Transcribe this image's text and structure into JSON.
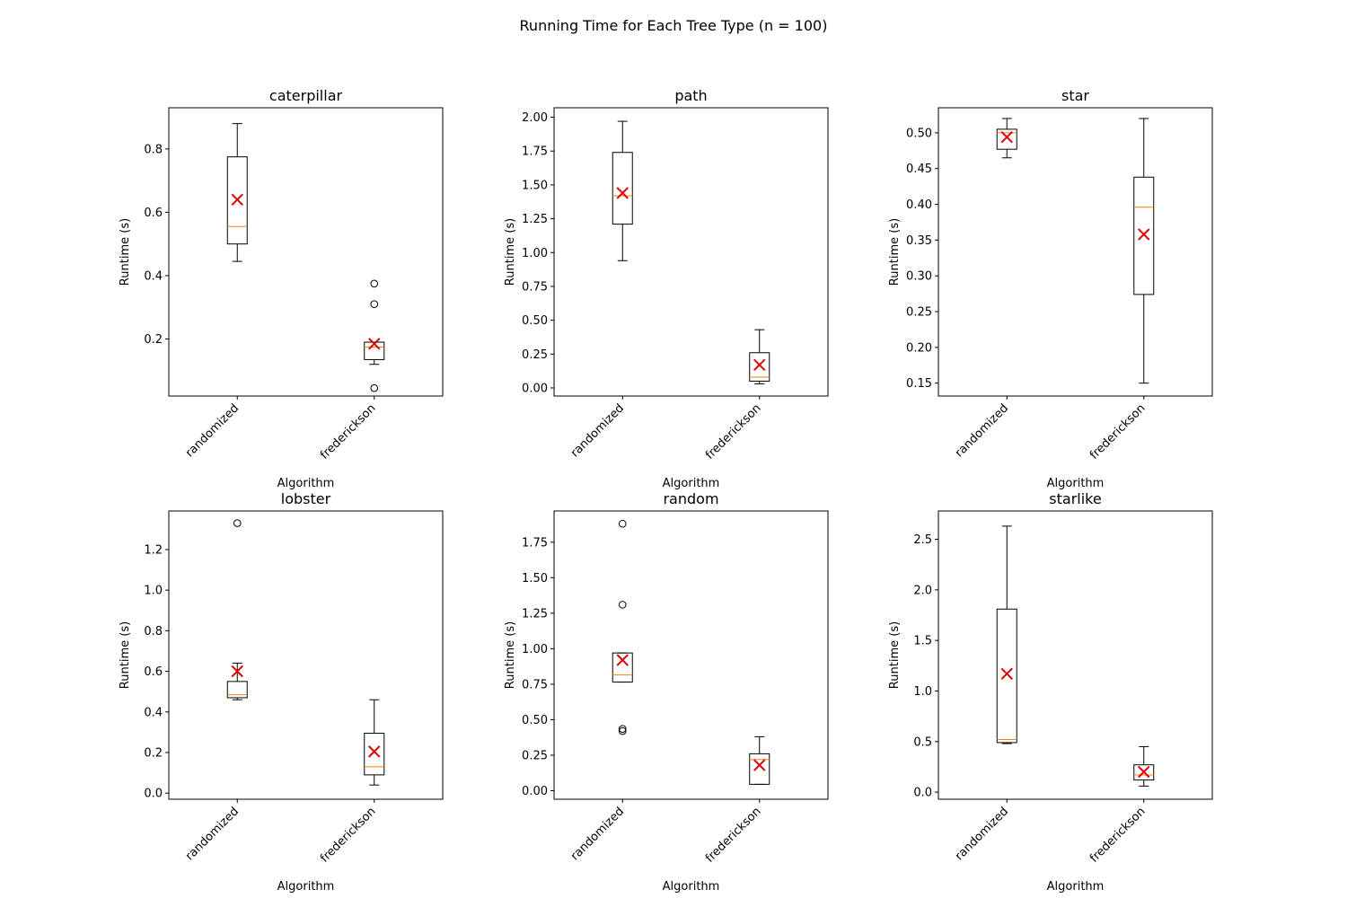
{
  "figure_title": "Running Time for Each Tree Type (n = 100)",
  "chart_data": [
    {
      "type": "box",
      "title": "caterpillar",
      "xlabel": "Algorithm",
      "ylabel": "Runtime (s)",
      "categories": [
        "randomized",
        "frederickson"
      ],
      "ylim": [
        0.02,
        0.93
      ],
      "yticks": [
        0.2,
        0.4,
        0.6,
        0.8
      ],
      "tick_labels": [
        "0.2",
        "0.4",
        "0.6",
        "0.8"
      ],
      "boxes": [
        {
          "whisker_low": 0.445,
          "q1": 0.5,
          "median": 0.555,
          "q3": 0.775,
          "whisker_high": 0.88,
          "mean": 0.64,
          "outliers": []
        },
        {
          "whisker_low": 0.12,
          "q1": 0.135,
          "median": 0.175,
          "q3": 0.19,
          "whisker_high": 0.19,
          "mean": 0.185,
          "outliers": [
            0.045,
            0.31,
            0.375
          ]
        }
      ]
    },
    {
      "type": "box",
      "title": "path",
      "xlabel": "Algorithm",
      "ylabel": "Runtime (s)",
      "categories": [
        "randomized",
        "frederickson"
      ],
      "ylim": [
        -0.06,
        2.07
      ],
      "yticks": [
        0.0,
        0.25,
        0.5,
        0.75,
        1.0,
        1.25,
        1.5,
        1.75,
        2.0
      ],
      "tick_labels": [
        "0.00",
        "0.25",
        "0.50",
        "0.75",
        "1.00",
        "1.25",
        "1.50",
        "1.75",
        "2.00"
      ],
      "boxes": [
        {
          "whisker_low": 0.94,
          "q1": 1.21,
          "median": 1.42,
          "q3": 1.74,
          "whisker_high": 1.97,
          "mean": 1.44,
          "outliers": []
        },
        {
          "whisker_low": 0.03,
          "q1": 0.05,
          "median": 0.08,
          "q3": 0.26,
          "whisker_high": 0.43,
          "mean": 0.17,
          "outliers": []
        }
      ]
    },
    {
      "type": "box",
      "title": "star",
      "xlabel": "Algorithm",
      "ylabel": "Runtime (s)",
      "categories": [
        "randomized",
        "frederickson"
      ],
      "ylim": [
        0.132,
        0.535
      ],
      "yticks": [
        0.15,
        0.2,
        0.25,
        0.3,
        0.35,
        0.4,
        0.45,
        0.5
      ],
      "tick_labels": [
        "0.15",
        "0.20",
        "0.25",
        "0.30",
        "0.35",
        "0.40",
        "0.45",
        "0.50"
      ],
      "boxes": [
        {
          "whisker_low": 0.465,
          "q1": 0.477,
          "median": 0.5,
          "q3": 0.505,
          "whisker_high": 0.52,
          "mean": 0.494,
          "outliers": []
        },
        {
          "whisker_low": 0.15,
          "q1": 0.274,
          "median": 0.396,
          "q3": 0.438,
          "whisker_high": 0.52,
          "mean": 0.358,
          "outliers": []
        }
      ]
    },
    {
      "type": "box",
      "title": "lobster",
      "xlabel": "Algorithm",
      "ylabel": "Runtime (s)",
      "categories": [
        "randomized",
        "frederickson"
      ],
      "ylim": [
        -0.03,
        1.39
      ],
      "yticks": [
        0.0,
        0.2,
        0.4,
        0.6,
        0.8,
        1.0,
        1.2
      ],
      "tick_labels": [
        "0.0",
        "0.2",
        "0.4",
        "0.6",
        "0.8",
        "1.0",
        "1.2"
      ],
      "boxes": [
        {
          "whisker_low": 0.46,
          "q1": 0.47,
          "median": 0.485,
          "q3": 0.55,
          "whisker_high": 0.64,
          "mean": 0.6,
          "outliers": [
            1.33
          ]
        },
        {
          "whisker_low": 0.04,
          "q1": 0.09,
          "median": 0.13,
          "q3": 0.295,
          "whisker_high": 0.46,
          "mean": 0.205,
          "outliers": []
        }
      ]
    },
    {
      "type": "box",
      "title": "random",
      "xlabel": "Algorithm",
      "ylabel": "Runtime (s)",
      "categories": [
        "randomized",
        "frederickson"
      ],
      "ylim": [
        -0.06,
        1.97
      ],
      "yticks": [
        0.0,
        0.25,
        0.5,
        0.75,
        1.0,
        1.25,
        1.5,
        1.75
      ],
      "tick_labels": [
        "0.00",
        "0.25",
        "0.50",
        "0.75",
        "1.00",
        "1.25",
        "1.50",
        "1.75"
      ],
      "boxes": [
        {
          "whisker_low": 0.765,
          "q1": 0.765,
          "median": 0.815,
          "q3": 0.97,
          "whisker_high": 0.97,
          "mean": 0.92,
          "outliers": [
            0.42,
            0.435,
            1.31,
            1.88
          ]
        },
        {
          "whisker_low": 0.045,
          "q1": 0.045,
          "median": 0.22,
          "q3": 0.26,
          "whisker_high": 0.38,
          "mean": 0.18,
          "outliers": []
        }
      ]
    },
    {
      "type": "box",
      "title": "starlike",
      "xlabel": "Algorithm",
      "ylabel": "Runtime (s)",
      "categories": [
        "randomized",
        "frederickson"
      ],
      "ylim": [
        -0.07,
        2.78
      ],
      "yticks": [
        0.0,
        0.5,
        1.0,
        1.5,
        2.0,
        2.5
      ],
      "tick_labels": [
        "0.0",
        "0.5",
        "1.0",
        "1.5",
        "2.0",
        "2.5"
      ],
      "boxes": [
        {
          "whisker_low": 0.48,
          "q1": 0.49,
          "median": 0.52,
          "q3": 1.81,
          "whisker_high": 2.63,
          "mean": 1.17,
          "outliers": []
        },
        {
          "whisker_low": 0.06,
          "q1": 0.12,
          "median": 0.17,
          "q3": 0.27,
          "whisker_high": 0.45,
          "mean": 0.2,
          "outliers": []
        }
      ]
    }
  ],
  "colors": {
    "box": "#000000",
    "median": "#ff7f0e",
    "mean_marker": "#dd0000",
    "background": "#ffffff"
  }
}
